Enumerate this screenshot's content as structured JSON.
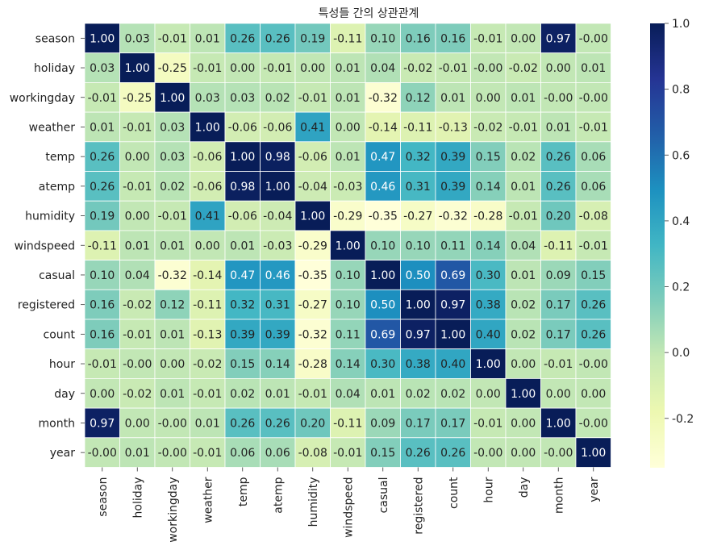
{
  "chart_data": {
    "type": "heatmap",
    "title": "특성들 간의 상관관계",
    "labels": [
      "season",
      "holiday",
      "workingday",
      "weather",
      "temp",
      "atemp",
      "humidity",
      "windspeed",
      "casual",
      "registered",
      "count",
      "hour",
      "day",
      "month",
      "year"
    ],
    "values": [
      [
        1.0,
        0.03,
        -0.01,
        0.01,
        0.26,
        0.26,
        0.19,
        -0.11,
        0.1,
        0.16,
        0.16,
        -0.01,
        0.0,
        0.97,
        -0.0
      ],
      [
        0.03,
        1.0,
        -0.25,
        -0.01,
        0.0,
        -0.01,
        0.0,
        0.01,
        0.04,
        -0.02,
        -0.01,
        -0.0,
        -0.02,
        0.0,
        0.01
      ],
      [
        -0.01,
        -0.25,
        1.0,
        0.03,
        0.03,
        0.02,
        -0.01,
        0.01,
        -0.32,
        0.12,
        0.01,
        0.0,
        0.01,
        -0.0,
        -0.0
      ],
      [
        0.01,
        -0.01,
        0.03,
        1.0,
        -0.06,
        -0.06,
        0.41,
        0.0,
        -0.14,
        -0.11,
        -0.13,
        -0.02,
        -0.01,
        0.01,
        -0.01
      ],
      [
        0.26,
        0.0,
        0.03,
        -0.06,
        1.0,
        0.98,
        -0.06,
        0.01,
        0.47,
        0.32,
        0.39,
        0.15,
        0.02,
        0.26,
        0.06
      ],
      [
        0.26,
        -0.01,
        0.02,
        -0.06,
        0.98,
        1.0,
        -0.04,
        -0.03,
        0.46,
        0.31,
        0.39,
        0.14,
        0.01,
        0.26,
        0.06
      ],
      [
        0.19,
        0.0,
        -0.01,
        0.41,
        -0.06,
        -0.04,
        1.0,
        -0.29,
        -0.35,
        -0.27,
        -0.32,
        -0.28,
        -0.01,
        0.2,
        -0.08
      ],
      [
        -0.11,
        0.01,
        0.01,
        0.0,
        0.01,
        -0.03,
        -0.29,
        1.0,
        0.1,
        0.1,
        0.11,
        0.14,
        0.04,
        -0.11,
        -0.01
      ],
      [
        0.1,
        0.04,
        -0.32,
        -0.14,
        0.47,
        0.46,
        -0.35,
        0.1,
        1.0,
        0.5,
        0.69,
        0.3,
        0.01,
        0.09,
        0.15
      ],
      [
        0.16,
        -0.02,
        0.12,
        -0.11,
        0.32,
        0.31,
        -0.27,
        0.1,
        0.5,
        1.0,
        0.97,
        0.38,
        0.02,
        0.17,
        0.26
      ],
      [
        0.16,
        -0.01,
        0.01,
        -0.13,
        0.39,
        0.39,
        -0.32,
        0.11,
        0.69,
        0.97,
        1.0,
        0.4,
        0.02,
        0.17,
        0.26
      ],
      [
        -0.01,
        -0.0,
        0.0,
        -0.02,
        0.15,
        0.14,
        -0.28,
        0.14,
        0.3,
        0.38,
        0.4,
        1.0,
        0.0,
        -0.01,
        -0.0
      ],
      [
        0.0,
        -0.02,
        0.01,
        -0.01,
        0.02,
        0.01,
        -0.01,
        0.04,
        0.01,
        0.02,
        0.02,
        0.0,
        1.0,
        0.0,
        0.0
      ],
      [
        0.97,
        0.0,
        -0.0,
        0.01,
        0.26,
        0.26,
        0.2,
        -0.11,
        0.09,
        0.17,
        0.17,
        -0.01,
        0.0,
        1.0,
        -0.0
      ],
      [
        -0.0,
        0.01,
        -0.0,
        -0.01,
        0.06,
        0.06,
        -0.08,
        -0.01,
        0.15,
        0.26,
        0.26,
        -0.0,
        0.0,
        -0.0,
        1.0
      ]
    ],
    "colormap": "YlGnBu",
    "colormap_stops": [
      "#ffffd9",
      "#edf8b1",
      "#c7e9b4",
      "#7fcdbb",
      "#41b6c4",
      "#1d91c0",
      "#225ea8",
      "#253494",
      "#081d58"
    ],
    "vmin": -0.35,
    "vmax": 1.0,
    "colorbar_ticks": [
      1.0,
      0.8,
      0.6,
      0.4,
      0.2,
      0.0,
      -0.2
    ],
    "colorbar_tick_labels": [
      "1.0",
      "0.8",
      "0.6",
      "0.4",
      "0.2",
      "0.0",
      "-0.2"
    ],
    "annotation_format": "2 decimals"
  }
}
